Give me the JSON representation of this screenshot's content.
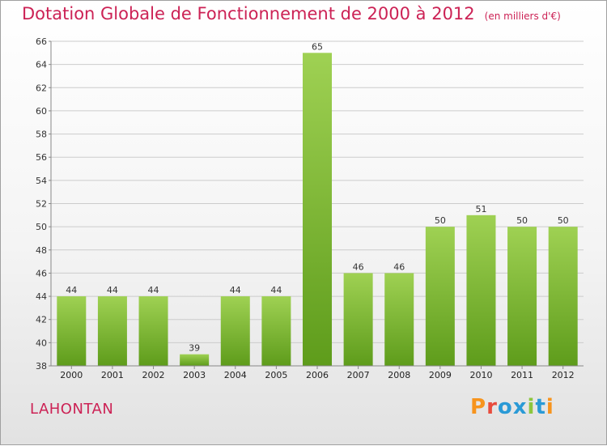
{
  "header": {
    "title": "Dotation Globale de Fonctionnement de 2000 à 2012",
    "subtitle": "(en milliers d'€)"
  },
  "footer": {
    "place": "LAHONTAN",
    "logo_text": "Proxiti",
    "logo_colors": [
      "#f7941d",
      "#e84c3d",
      "#2a9ad6",
      "#2a9ad6",
      "#8cc63e",
      "#2a9ad6",
      "#f7941d"
    ]
  },
  "chart_data": {
    "type": "bar",
    "categories": [
      "2000",
      "2001",
      "2002",
      "2003",
      "2004",
      "2005",
      "2006",
      "2007",
      "2008",
      "2009",
      "2010",
      "2011",
      "2012"
    ],
    "values": [
      44,
      44,
      44,
      39,
      44,
      44,
      65,
      46,
      46,
      50,
      51,
      50,
      50
    ],
    "data_labels": [
      "44",
      "44",
      "44",
      "39",
      "44",
      "44",
      "65",
      "46",
      "46",
      "50",
      "51",
      "50",
      "50"
    ],
    "ylim": [
      38,
      66
    ],
    "yticks": [
      38,
      40,
      42,
      44,
      46,
      48,
      50,
      52,
      54,
      56,
      58,
      60,
      62,
      64,
      66
    ],
    "grid": true,
    "bar_color_top": "#9fd153",
    "bar_color_bottom": "#5e9c1b"
  }
}
